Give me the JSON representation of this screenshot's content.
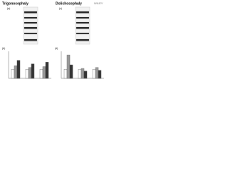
{
  "header": {
    "logo": "WILEY"
  },
  "panels": [
    {
      "letter": "(a)",
      "title": "Trigonocephaly"
    },
    {
      "letter": "(c)",
      "title": "Dolichocephaly"
    }
  ],
  "charts": [
    {
      "type": "bar",
      "letter": "(b)",
      "ylim": [
        0,
        3
      ],
      "series": [
        {
          "color": "#ffffff",
          "values": [
            1,
            1,
            1
          ]
        },
        {
          "color": "#9a9a9a",
          "values": [
            1.4,
            1.2,
            1.3
          ]
        },
        {
          "color": "#333333",
          "values": [
            2,
            1.6,
            1.8
          ]
        }
      ]
    },
    {
      "type": "bar",
      "letter": "(d)",
      "ylim": [
        0,
        3
      ],
      "series": [
        {
          "color": "#ffffff",
          "values": [
            1,
            1,
            1
          ]
        },
        {
          "color": "#9a9a9a",
          "values": [
            2.6,
            1.1,
            1.2
          ]
        },
        {
          "color": "#333333",
          "values": [
            1.5,
            0.8,
            0.9
          ]
        }
      ]
    }
  ]
}
